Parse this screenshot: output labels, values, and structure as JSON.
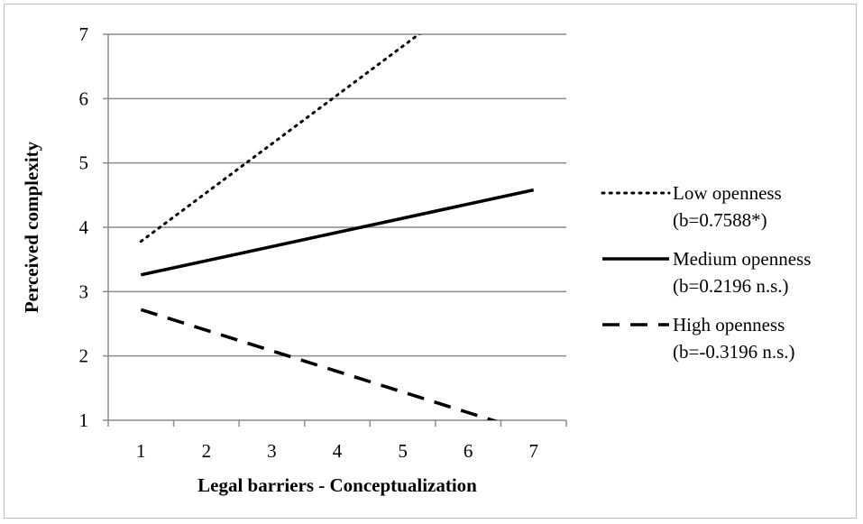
{
  "chart_data": {
    "type": "line",
    "title": "",
    "xlabel": "Legal barriers - Conceptualization",
    "ylabel": "Perceived complexity",
    "xlim": [
      0.5,
      7.5
    ],
    "ylim": [
      1,
      7
    ],
    "x_ticks": [
      1,
      2,
      3,
      4,
      5,
      6,
      7
    ],
    "y_ticks": [
      1,
      2,
      3,
      4,
      5,
      6,
      7
    ],
    "grid": "horizontal",
    "legend_position": "right",
    "series": [
      {
        "name": "Low openness",
        "name_line2": "(b=0.7588*)",
        "style": "dotted",
        "color": "#000000",
        "x": [
          1,
          7
        ],
        "y": [
          3.78,
          8.33
        ]
      },
      {
        "name": "Medium openness",
        "name_line2": "(b=0.2196 n.s.)",
        "style": "solid",
        "color": "#000000",
        "x": [
          1,
          7
        ],
        "y": [
          3.26,
          4.58
        ]
      },
      {
        "name": "High openness",
        "name_line2": "(b=-0.3196 n.s.)",
        "style": "dashed",
        "color": "#000000",
        "x": [
          1,
          7
        ],
        "y": [
          2.72,
          0.8
        ]
      }
    ]
  }
}
